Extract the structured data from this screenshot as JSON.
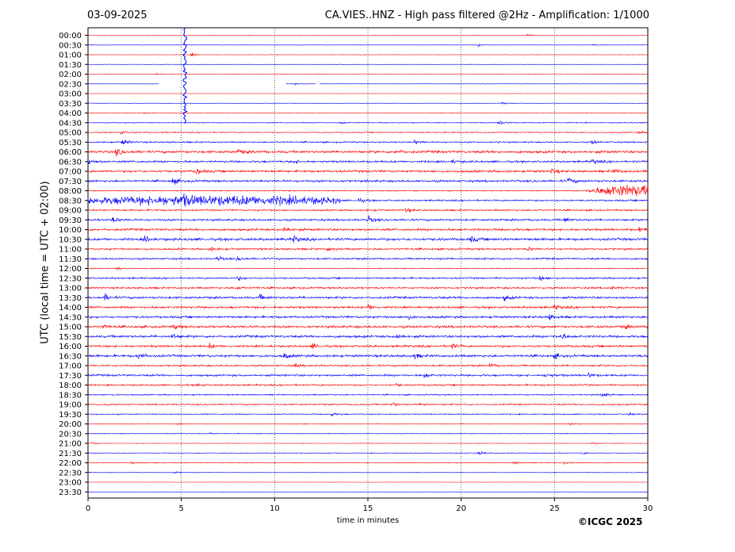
{
  "header": {
    "date": "03-09-2025",
    "title": "CA.VIES..HNZ - High pass filtered @2Hz - Amplification: 1/1000"
  },
  "footer": {
    "copyright": "©ICGC 2025"
  },
  "colors": {
    "red": "#ff0000",
    "blue": "#0000ff",
    "axis": "#000000",
    "grid": "#000000"
  },
  "chart_data": {
    "type": "line",
    "title": "CA.VIES..HNZ - High pass filtered @2Hz - Amplification: 1/1000",
    "xlabel": "time in minutes",
    "ylabel": "UTC (local time = UTC + 02:00)",
    "xlim": [
      0,
      30
    ],
    "x_ticks": [
      0,
      5,
      10,
      15,
      20,
      25,
      30
    ],
    "y_ticks": [
      "00:00",
      "00:30",
      "01:00",
      "01:30",
      "02:00",
      "02:30",
      "03:00",
      "03:30",
      "04:00",
      "04:30",
      "05:00",
      "05:30",
      "06:00",
      "06:30",
      "07:00",
      "07:30",
      "08:00",
      "08:30",
      "09:00",
      "09:30",
      "10:00",
      "10:30",
      "11:00",
      "11:30",
      "12:00",
      "12:30",
      "13:00",
      "13:30",
      "14:00",
      "14:30",
      "15:00",
      "15:30",
      "16:00",
      "16:30",
      "17:00",
      "17:30",
      "18:00",
      "18:30",
      "19:00",
      "19:30",
      "20:00",
      "20:30",
      "21:00",
      "21:30",
      "22:00",
      "22:30",
      "23:00",
      "23:30"
    ],
    "trace_colors": [
      "red",
      "blue"
    ],
    "grid": "vertical dotted lines every 5 minutes",
    "traces": [
      {
        "t": "00:00",
        "color": "red",
        "noise": 0.4,
        "bursts": [
          [
            23.5,
            3
          ]
        ]
      },
      {
        "t": "00:30",
        "color": "blue",
        "noise": 0.4,
        "bursts": [
          [
            20.9,
            3
          ],
          [
            27.0,
            2.5
          ]
        ]
      },
      {
        "t": "01:00",
        "color": "red",
        "noise": 0.5,
        "bursts": [
          [
            5.5,
            4
          ]
        ]
      },
      {
        "t": "01:30",
        "color": "blue",
        "noise": 0.4,
        "bursts": []
      },
      {
        "t": "02:00",
        "color": "red",
        "noise": 0.5,
        "bursts": [
          [
            3.6,
            2
          ]
        ]
      },
      {
        "t": "02:30",
        "color": "blue",
        "noise": 0.4,
        "bursts": [
          [
            11.0,
            2
          ]
        ],
        "gaps": [
          [
            3.8,
            10.6
          ],
          [
            12.2,
            12.4
          ]
        ]
      },
      {
        "t": "03:00",
        "color": "red",
        "noise": 0.4,
        "bursts": []
      },
      {
        "t": "03:30",
        "color": "blue",
        "noise": 0.5,
        "bursts": [
          [
            22.2,
            2.5
          ]
        ]
      },
      {
        "t": "04:00",
        "color": "red",
        "noise": 0.7,
        "bursts": [
          [
            3.0,
            2
          ]
        ]
      },
      {
        "t": "04:30",
        "color": "blue",
        "noise": 1.0,
        "bursts": [
          [
            13.5,
            3
          ],
          [
            22.0,
            6
          ]
        ]
      },
      {
        "t": "05:00",
        "color": "red",
        "noise": 1.2,
        "bursts": [
          [
            1.7,
            5
          ],
          [
            29.5,
            3
          ]
        ]
      },
      {
        "t": "05:30",
        "color": "blue",
        "noise": 1.6,
        "bursts": [
          [
            1.8,
            8
          ],
          [
            17.5,
            5
          ],
          [
            27.0,
            5
          ]
        ]
      },
      {
        "t": "06:00",
        "color": "red",
        "noise": 2.8,
        "bursts": [
          [
            1.5,
            9
          ],
          [
            8.0,
            6
          ],
          [
            16.5,
            5
          ]
        ]
      },
      {
        "t": "06:30",
        "color": "blue",
        "noise": 2.2,
        "bursts": [
          [
            0.0,
            6
          ],
          [
            11.0,
            5
          ],
          [
            19.5,
            4
          ],
          [
            27.0,
            7
          ]
        ]
      },
      {
        "t": "07:00",
        "color": "red",
        "noise": 2.5,
        "bursts": [
          [
            5.8,
            7
          ],
          [
            24.8,
            7
          ],
          [
            28.2,
            5
          ]
        ]
      },
      {
        "t": "07:30",
        "color": "blue",
        "noise": 2.4,
        "bursts": [
          [
            4.5,
            8
          ],
          [
            25.7,
            8
          ]
        ]
      },
      {
        "t": "08:00",
        "color": "red",
        "noise": 1.2,
        "bursts": [],
        "envelope": [
          26.5,
          30,
          12
        ]
      },
      {
        "t": "08:30",
        "color": "blue",
        "noise": 1.8,
        "bursts": [
          [
            5.0,
            8
          ],
          [
            14.5,
            5
          ]
        ],
        "envelope": [
          0,
          13.5,
          10
        ]
      },
      {
        "t": "09:00",
        "color": "red",
        "noise": 1.8,
        "bursts": [
          [
            17.0,
            5
          ]
        ]
      },
      {
        "t": "09:30",
        "color": "blue",
        "noise": 2.2,
        "bursts": [
          [
            1.3,
            7
          ],
          [
            15.0,
            8
          ],
          [
            25.5,
            6
          ]
        ]
      },
      {
        "t": "10:00",
        "color": "red",
        "noise": 2.5,
        "bursts": [
          [
            10.5,
            7
          ],
          [
            29.5,
            6
          ]
        ]
      },
      {
        "t": "10:30",
        "color": "blue",
        "noise": 2.8,
        "bursts": [
          [
            3.0,
            7
          ],
          [
            11.0,
            8
          ],
          [
            20.5,
            7
          ]
        ]
      },
      {
        "t": "11:00",
        "color": "red",
        "noise": 2.0,
        "bursts": [
          [
            6.5,
            5
          ],
          [
            12.8,
            6
          ],
          [
            23.5,
            5
          ]
        ]
      },
      {
        "t": "11:30",
        "color": "blue",
        "noise": 2.0,
        "bursts": [
          [
            6.9,
            6
          ],
          [
            8.0,
            5
          ]
        ]
      },
      {
        "t": "12:00",
        "color": "red",
        "noise": 1.0,
        "bursts": [
          [
            1.5,
            3
          ]
        ]
      },
      {
        "t": "12:30",
        "color": "blue",
        "noise": 1.8,
        "bursts": [
          [
            8.0,
            5
          ],
          [
            24.2,
            8
          ]
        ]
      },
      {
        "t": "13:00",
        "color": "red",
        "noise": 2.0,
        "bursts": [
          [
            8.0,
            4
          ],
          [
            28.0,
            4
          ]
        ]
      },
      {
        "t": "13:30",
        "color": "blue",
        "noise": 2.4,
        "bursts": [
          [
            0.9,
            8
          ],
          [
            9.2,
            6
          ],
          [
            22.3,
            7
          ]
        ]
      },
      {
        "t": "14:00",
        "color": "red",
        "noise": 2.4,
        "bursts": [
          [
            15.0,
            7
          ],
          [
            25.0,
            6
          ]
        ]
      },
      {
        "t": "14:30",
        "color": "blue",
        "noise": 2.4,
        "bursts": [
          [
            17.0,
            6
          ],
          [
            24.7,
            7
          ]
        ]
      },
      {
        "t": "15:00",
        "color": "red",
        "noise": 2.6,
        "bursts": [
          [
            0.8,
            6
          ],
          [
            4.6,
            5
          ],
          [
            28.7,
            6
          ]
        ]
      },
      {
        "t": "15:30",
        "color": "blue",
        "noise": 2.6,
        "bursts": [
          [
            4.5,
            7
          ],
          [
            16.5,
            8
          ],
          [
            25.3,
            8
          ]
        ]
      },
      {
        "t": "16:00",
        "color": "red",
        "noise": 2.4,
        "bursts": [
          [
            6.5,
            6
          ],
          [
            12.0,
            6
          ],
          [
            19.5,
            6
          ]
        ]
      },
      {
        "t": "16:30",
        "color": "blue",
        "noise": 2.6,
        "bursts": [
          [
            2.7,
            7
          ],
          [
            10.5,
            7
          ],
          [
            17.5,
            6
          ],
          [
            25.0,
            6
          ]
        ]
      },
      {
        "t": "17:00",
        "color": "red",
        "noise": 2.0,
        "bursts": [
          [
            11.0,
            5
          ],
          [
            21.5,
            5
          ]
        ]
      },
      {
        "t": "17:30",
        "color": "blue",
        "noise": 2.2,
        "bursts": [
          [
            18.0,
            6
          ],
          [
            24.5,
            6
          ],
          [
            26.8,
            6
          ]
        ]
      },
      {
        "t": "18:00",
        "color": "red",
        "noise": 1.8,
        "bursts": [
          [
            5.8,
            5
          ],
          [
            16.5,
            4
          ]
        ]
      },
      {
        "t": "18:30",
        "color": "blue",
        "noise": 1.4,
        "bursts": [
          [
            27.5,
            7
          ]
        ]
      },
      {
        "t": "19:00",
        "color": "red",
        "noise": 1.6,
        "bursts": [
          [
            16.3,
            6
          ],
          [
            17.8,
            5
          ]
        ]
      },
      {
        "t": "19:30",
        "color": "blue",
        "noise": 1.2,
        "bursts": [
          [
            13.0,
            5
          ],
          [
            29.0,
            3
          ]
        ]
      },
      {
        "t": "20:00",
        "color": "red",
        "noise": 0.8,
        "bursts": [
          [
            4.8,
            3
          ],
          [
            25.7,
            3
          ]
        ]
      },
      {
        "t": "20:30",
        "color": "blue",
        "noise": 0.8,
        "bursts": [
          [
            6.5,
            3
          ]
        ]
      },
      {
        "t": "21:00",
        "color": "red",
        "noise": 0.6,
        "bursts": [
          [
            0.2,
            3
          ],
          [
            27.0,
            3
          ]
        ]
      },
      {
        "t": "21:30",
        "color": "blue",
        "noise": 0.8,
        "bursts": [
          [
            20.9,
            6
          ],
          [
            26.5,
            3
          ]
        ]
      },
      {
        "t": "22:00",
        "color": "red",
        "noise": 0.8,
        "bursts": [
          [
            2.3,
            3
          ],
          [
            22.8,
            3
          ],
          [
            25.5,
            3
          ]
        ]
      },
      {
        "t": "22:30",
        "color": "blue",
        "noise": 0.7,
        "bursts": [
          [
            4.6,
            3
          ]
        ]
      },
      {
        "t": "23:00",
        "color": "red",
        "noise": 0.3,
        "bursts": []
      },
      {
        "t": "23:30",
        "color": "blue",
        "noise": 0.3,
        "bursts": []
      }
    ],
    "event": {
      "x": 5.2,
      "rows": [
        "00:00",
        "04:30"
      ],
      "color": "blue"
    }
  }
}
